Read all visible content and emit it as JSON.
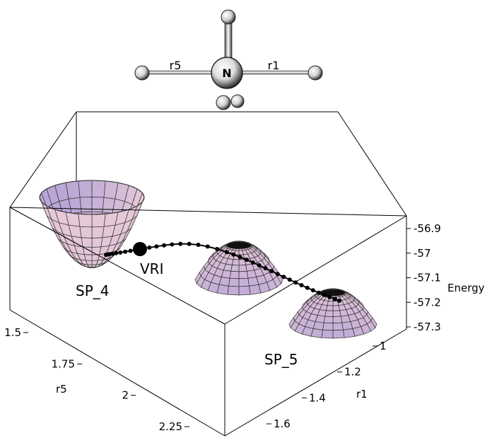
{
  "molecule": {
    "center_atom": "N",
    "bond_left_label": "r5",
    "bond_right_label": "r1"
  },
  "chart_data": {
    "type": "surface3d",
    "z_axis": {
      "label": "Energy",
      "ticks": [
        "-56.9",
        "-57",
        "-57.1",
        "-57.2",
        "-57.3"
      ],
      "range": [
        -57.3,
        -56.9
      ]
    },
    "x_axis": {
      "label": "r1",
      "ticks": [
        "1",
        "1.2",
        "1.4",
        "1.6"
      ]
    },
    "y_axis": {
      "label": "r5",
      "ticks": [
        "1.5",
        "1.75",
        "2",
        "2.25"
      ]
    },
    "stationary_points": [
      {
        "name": "SP_4",
        "kind": "minimum"
      },
      {
        "name": "SP_5",
        "kind": "maximum"
      },
      {
        "name": "",
        "kind": "maximum"
      }
    ],
    "markers": [
      {
        "name": "VRI"
      }
    ],
    "surface_colors": {
      "light": "#efd0d8",
      "dark": "#b9a6d6",
      "grid": "#333333"
    }
  }
}
